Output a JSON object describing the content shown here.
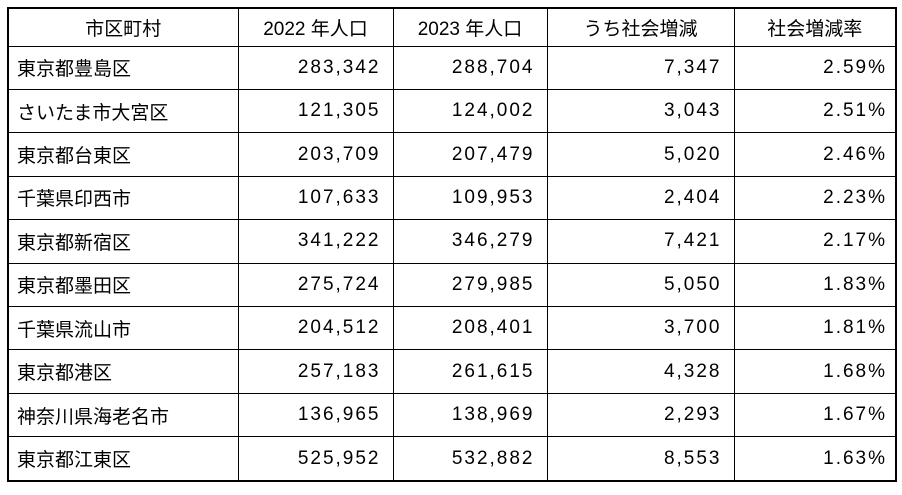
{
  "page": {
    "background_color": "#ffffff",
    "border_color": "#000000",
    "text_color": "#000000"
  },
  "table": {
    "headers": [
      "市区町村",
      "2022 年人口",
      "2023 年人口",
      "うち社会増減",
      "社会増減率"
    ],
    "rows": [
      {
        "municipality": "東京都豊島区",
        "pop_2022": "283,342",
        "pop_2023": "288,704",
        "social_change": "7,347",
        "social_change_rate": "2.59%"
      },
      {
        "municipality": "さいたま市大宮区",
        "pop_2022": "121,305",
        "pop_2023": "124,002",
        "social_change": "3,043",
        "social_change_rate": "2.51%"
      },
      {
        "municipality": "東京都台東区",
        "pop_2022": "203,709",
        "pop_2023": "207,479",
        "social_change": "5,020",
        "social_change_rate": "2.46%"
      },
      {
        "municipality": "千葉県印西市",
        "pop_2022": "107,633",
        "pop_2023": "109,953",
        "social_change": "2,404",
        "social_change_rate": "2.23%"
      },
      {
        "municipality": "東京都新宿区",
        "pop_2022": "341,222",
        "pop_2023": "346,279",
        "social_change": "7,421",
        "social_change_rate": "2.17%"
      },
      {
        "municipality": "東京都墨田区",
        "pop_2022": "275,724",
        "pop_2023": "279,985",
        "social_change": "5,050",
        "social_change_rate": "1.83%"
      },
      {
        "municipality": "千葉県流山市",
        "pop_2022": "204,512",
        "pop_2023": "208,401",
        "social_change": "3,700",
        "social_change_rate": "1.81%"
      },
      {
        "municipality": "東京都港区",
        "pop_2022": "257,183",
        "pop_2023": "261,615",
        "social_change": "4,328",
        "social_change_rate": "1.68%"
      },
      {
        "municipality": "神奈川県海老名市",
        "pop_2022": "136,965",
        "pop_2023": "138,969",
        "social_change": "2,293",
        "social_change_rate": "1.67%"
      },
      {
        "municipality": "東京都江東区",
        "pop_2022": "525,952",
        "pop_2023": "532,882",
        "social_change": "8,553",
        "social_change_rate": "1.63%"
      }
    ]
  }
}
